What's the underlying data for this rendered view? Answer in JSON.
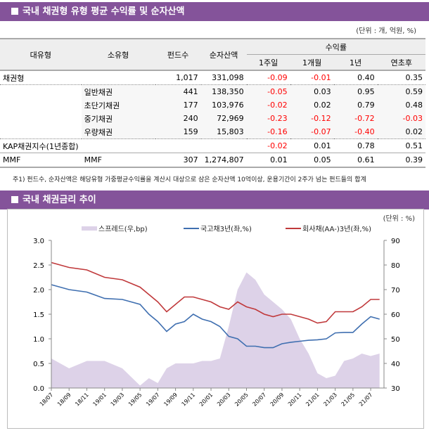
{
  "section1": {
    "title": "국내 채권형 유형 평균 수익률 및 순자산액",
    "unit": "(단위 : 개, 억원, %)"
  },
  "table": {
    "headers": {
      "major": "대유형",
      "minor": "소유형",
      "funds": "펀드수",
      "assets": "순자산액",
      "returns": "수익률",
      "r1w": "1주일",
      "r1m": "1개월",
      "r1y": "1년",
      "ytd": "연초후"
    },
    "rows": [
      {
        "major": "채권형",
        "minor": "",
        "funds": "1,017",
        "assets": "331,098",
        "r1w": "-0.09",
        "r1m": "-0.01",
        "r1y": "0.40",
        "ytd": "0.35"
      },
      {
        "major": "",
        "minor": "일반채권",
        "funds": "441",
        "assets": "138,350",
        "r1w": "-0.05",
        "r1m": "0.03",
        "r1y": "0.95",
        "ytd": "0.59"
      },
      {
        "major": "",
        "minor": "초단기채권",
        "funds": "177",
        "assets": "103,976",
        "r1w": "-0.02",
        "r1m": "0.02",
        "r1y": "0.79",
        "ytd": "0.48"
      },
      {
        "major": "",
        "minor": "중기채권",
        "funds": "240",
        "assets": "72,969",
        "r1w": "-0.23",
        "r1m": "-0.12",
        "r1y": "-0.72",
        "ytd": "-0.03"
      },
      {
        "major": "",
        "minor": "우량채권",
        "funds": "159",
        "assets": "15,803",
        "r1w": "-0.16",
        "r1m": "-0.07",
        "r1y": "-0.40",
        "ytd": "0.02"
      },
      {
        "major": "KAP채권지수(1년종합)",
        "minor": "",
        "funds": "",
        "assets": "",
        "r1w": "-0.02",
        "r1m": "0.01",
        "r1y": "0.78",
        "ytd": "0.51"
      },
      {
        "major": "MMF",
        "minor": "MMF",
        "funds": "307",
        "assets": "1,274,807",
        "r1w": "0.01",
        "r1m": "0.05",
        "r1y": "0.61",
        "ytd": "0.39"
      }
    ],
    "note": "주1) 펀드수, 순자산액은 해당유형 가중평균수익률을 계산시 대상으로 삼은 순자산액 10억이상, 운용기간이 2주가 넘는 펀드들의 합계"
  },
  "section2": {
    "title": "국내 채권금리 추이",
    "unit": "(단위 : %)"
  },
  "chart_data": {
    "type": "line",
    "x": [
      "18/07",
      "18/09",
      "18/11",
      "19/01",
      "19/03",
      "19/05",
      "19/06",
      "19/07",
      "19/08",
      "19/09",
      "19/10",
      "19/11",
      "19/12",
      "20/01",
      "20/02",
      "20/03",
      "20/04",
      "20/05",
      "20/06",
      "20/07",
      "20/08",
      "20/09",
      "20/10",
      "20/11",
      "20/12",
      "21/01",
      "21/02",
      "21/03",
      "21/04",
      "21/05",
      "21/06",
      "21/07",
      "21/08"
    ],
    "x_ticks": [
      "18/07",
      "18/09",
      "18/11",
      "19/01",
      "19/03",
      "19/05",
      "19/07",
      "19/09",
      "19/11",
      "20/01",
      "20/03",
      "20/05",
      "20/07",
      "20/09",
      "20/11",
      "21/01",
      "21/03",
      "21/05",
      "21/07"
    ],
    "series": [
      {
        "name": "스프레드(우,bp)",
        "type": "area",
        "axis": "right",
        "color": "#ddd2e8",
        "values": [
          42,
          38,
          41,
          41,
          38,
          31,
          34,
          32,
          38,
          40,
          40,
          40,
          41,
          41,
          42,
          55,
          70,
          77,
          74,
          68,
          65,
          62,
          58,
          50,
          44,
          36,
          34,
          35,
          41,
          42,
          44,
          43,
          44
        ]
      },
      {
        "name": "국고채3년(좌,%)",
        "type": "line",
        "axis": "left",
        "color": "#3f6fb0",
        "values": [
          2.1,
          2.0,
          1.95,
          1.82,
          1.8,
          1.7,
          1.5,
          1.35,
          1.15,
          1.3,
          1.35,
          1.5,
          1.4,
          1.35,
          1.25,
          1.05,
          1.0,
          0.85,
          0.85,
          0.82,
          0.82,
          0.9,
          0.93,
          0.95,
          0.97,
          0.98,
          1.0,
          1.12,
          1.13,
          1.13,
          1.3,
          1.45,
          1.4
        ]
      },
      {
        "name": "회사채(AA-)3년(좌,%)",
        "type": "line",
        "axis": "left",
        "color": "#c0393b",
        "values": [
          2.55,
          2.45,
          2.4,
          2.25,
          2.2,
          2.05,
          1.9,
          1.75,
          1.55,
          1.7,
          1.85,
          1.85,
          1.8,
          1.75,
          1.65,
          1.6,
          1.75,
          1.65,
          1.6,
          1.5,
          1.45,
          1.5,
          1.5,
          1.45,
          1.4,
          1.32,
          1.35,
          1.55,
          1.55,
          1.55,
          1.65,
          1.8,
          1.8
        ]
      }
    ],
    "yleft": {
      "ticks": [
        "0.0",
        "0.5",
        "1.0",
        "1.5",
        "2.0",
        "2.5",
        "3.0"
      ],
      "lim": [
        0,
        3
      ]
    },
    "yright": {
      "ticks": [
        "30",
        "40",
        "50",
        "60",
        "70",
        "80",
        "90"
      ],
      "lim": [
        30,
        90
      ]
    },
    "legend": "top"
  }
}
